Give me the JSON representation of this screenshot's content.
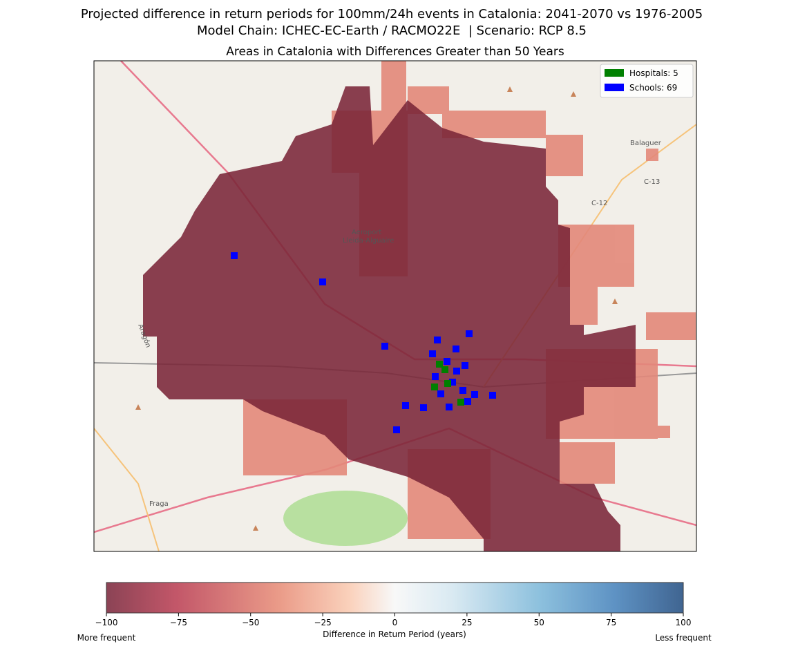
{
  "title": "Projected difference in return periods for 100mm/24h events in Catalonia: 2041-2070 vs 1976-2005",
  "subtitle": "Model Chain: ICHEC-EC-Earth / RACMO22E  | Scenario: RCP 8.5",
  "map_title": "Areas in Catalonia with Differences Greater than 50 Years",
  "legend": [
    {
      "label": "Hospitals: 5",
      "color": "#008000"
    },
    {
      "label": "Schools: 69",
      "color": "#0000ff"
    }
  ],
  "colorbar": {
    "label": "Difference in Return Period (years)",
    "left_label": "More frequent",
    "right_label": "Less frequent",
    "lim": [
      -100,
      100
    ],
    "ticks": [
      {
        "value": -100,
        "label": "−100"
      },
      {
        "value": -75,
        "label": "−75"
      },
      {
        "value": -50,
        "label": "−50"
      },
      {
        "value": -25,
        "label": "−25"
      },
      0,
      25,
      50,
      75,
      100
    ]
  },
  "place_labels": [
    "Balaguer",
    "C-13",
    "C-12",
    "Fraga",
    "Aeroport",
    "Lleida-Alguaire",
    "Aragón"
  ]
}
